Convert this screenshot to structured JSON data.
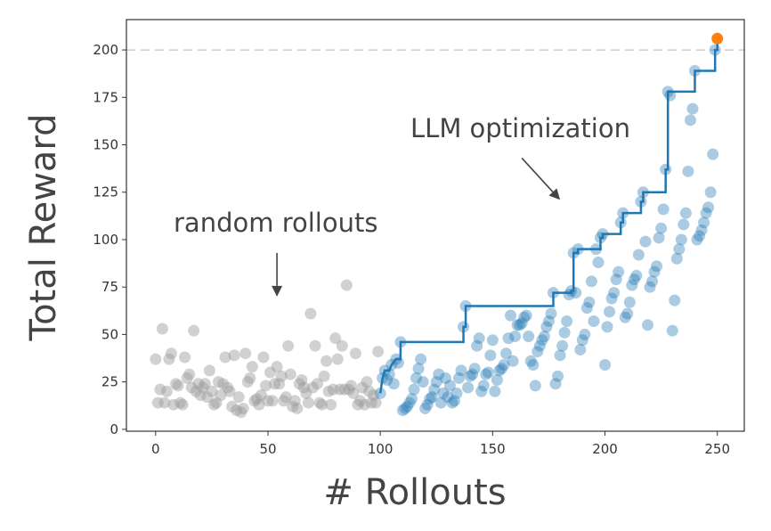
{
  "chart_data": {
    "type": "scatter",
    "xlabel": "# Rollouts",
    "ylabel": "Total Reward",
    "xlim": [
      -13,
      262
    ],
    "ylim": [
      -1,
      216
    ],
    "xticks": [
      0,
      50,
      100,
      150,
      200,
      250
    ],
    "yticks": [
      0,
      25,
      50,
      75,
      100,
      125,
      150,
      175,
      200
    ],
    "grid": false,
    "reference_line": {
      "y": 200,
      "style": "dashed",
      "color": "#cccccc"
    },
    "annotations": [
      {
        "text": "random rollouts",
        "arrow_from": [
          54,
          93
        ],
        "arrow_to": [
          54,
          70
        ]
      },
      {
        "text": "LLM optimization",
        "arrow_from": [
          163,
          143
        ],
        "arrow_to": [
          180,
          121
        ]
      }
    ],
    "colors": {
      "random": "#999999",
      "llm": "#1f77b4",
      "best": "#ff7f0e",
      "best_line": "#1f77b4"
    },
    "series": [
      {
        "name": "random rollouts",
        "points": [
          [
            0,
            37
          ],
          [
            1,
            14
          ],
          [
            2,
            21
          ],
          [
            3,
            53
          ],
          [
            4,
            14
          ],
          [
            5,
            20
          ],
          [
            6,
            37
          ],
          [
            7,
            40
          ],
          [
            8,
            13
          ],
          [
            9,
            24
          ],
          [
            10,
            23
          ],
          [
            11,
            14
          ],
          [
            12,
            13
          ],
          [
            13,
            38
          ],
          [
            14,
            27
          ],
          [
            15,
            29
          ],
          [
            16,
            22
          ],
          [
            17,
            52
          ],
          [
            18,
            20
          ],
          [
            19,
            24
          ],
          [
            20,
            18
          ],
          [
            21,
            22
          ],
          [
            22,
            24
          ],
          [
            23,
            17
          ],
          [
            24,
            31
          ],
          [
            25,
            20
          ],
          [
            26,
            13
          ],
          [
            27,
            14
          ],
          [
            28,
            25
          ],
          [
            29,
            18
          ],
          [
            30,
            24
          ],
          [
            31,
            38
          ],
          [
            32,
            22
          ],
          [
            33,
            20
          ],
          [
            34,
            12
          ],
          [
            35,
            39
          ],
          [
            36,
            10
          ],
          [
            37,
            17
          ],
          [
            38,
            9
          ],
          [
            39,
            11
          ],
          [
            40,
            40
          ],
          [
            41,
            25
          ],
          [
            42,
            27
          ],
          [
            43,
            33
          ],
          [
            44,
            15
          ],
          [
            45,
            16
          ],
          [
            46,
            13
          ],
          [
            47,
            18
          ],
          [
            48,
            38
          ],
          [
            49,
            23
          ],
          [
            50,
            15
          ],
          [
            51,
            30
          ],
          [
            52,
            15
          ],
          [
            53,
            24
          ],
          [
            54,
            33
          ],
          [
            55,
            24
          ],
          [
            56,
            28
          ],
          [
            57,
            15
          ],
          [
            58,
            17
          ],
          [
            59,
            44
          ],
          [
            60,
            29
          ],
          [
            61,
            12
          ],
          [
            62,
            15
          ],
          [
            63,
            11
          ],
          [
            64,
            24
          ],
          [
            65,
            26
          ],
          [
            66,
            22
          ],
          [
            67,
            19
          ],
          [
            68,
            14
          ],
          [
            69,
            61
          ],
          [
            70,
            22
          ],
          [
            71,
            44
          ],
          [
            72,
            24
          ],
          [
            73,
            14
          ],
          [
            74,
            13
          ],
          [
            75,
            28
          ],
          [
            76,
            36
          ],
          [
            77,
            20
          ],
          [
            78,
            13
          ],
          [
            79,
            21
          ],
          [
            80,
            48
          ],
          [
            81,
            37
          ],
          [
            82,
            21
          ],
          [
            83,
            44
          ],
          [
            84,
            21
          ],
          [
            85,
            76
          ],
          [
            86,
            21
          ],
          [
            87,
            23
          ],
          [
            88,
            19
          ],
          [
            89,
            40
          ],
          [
            90,
            13
          ],
          [
            91,
            15
          ],
          [
            92,
            22
          ],
          [
            93,
            13
          ],
          [
            94,
            25
          ],
          [
            95,
            20
          ],
          [
            96,
            14
          ],
          [
            97,
            18
          ],
          [
            98,
            14
          ],
          [
            99,
            41
          ]
        ]
      },
      {
        "name": "LLM optimization",
        "points": [
          [
            100,
            19
          ],
          [
            101,
            27
          ],
          [
            102,
            31
          ],
          [
            103,
            26
          ],
          [
            104,
            29
          ],
          [
            105,
            34
          ],
          [
            106,
            24
          ],
          [
            107,
            37
          ],
          [
            108,
            35
          ],
          [
            109,
            46
          ],
          [
            110,
            10
          ],
          [
            111,
            11
          ],
          [
            112,
            12
          ],
          [
            113,
            14
          ],
          [
            114,
            16
          ],
          [
            115,
            21
          ],
          [
            116,
            27
          ],
          [
            117,
            32
          ],
          [
            118,
            37
          ],
          [
            119,
            25
          ],
          [
            120,
            11
          ],
          [
            121,
            13
          ],
          [
            122,
            16
          ],
          [
            123,
            17
          ],
          [
            124,
            21
          ],
          [
            125,
            25
          ],
          [
            126,
            29
          ],
          [
            127,
            14
          ],
          [
            128,
            19
          ],
          [
            129,
            27
          ],
          [
            130,
            17
          ],
          [
            131,
            23
          ],
          [
            132,
            14
          ],
          [
            133,
            15
          ],
          [
            134,
            19
          ],
          [
            135,
            27
          ],
          [
            136,
            31
          ],
          [
            137,
            54
          ],
          [
            138,
            65
          ],
          [
            139,
            22
          ],
          [
            140,
            28
          ],
          [
            141,
            29
          ],
          [
            142,
            32
          ],
          [
            143,
            44
          ],
          [
            144,
            48
          ],
          [
            145,
            20
          ],
          [
            146,
            23
          ],
          [
            147,
            29
          ],
          [
            148,
            30
          ],
          [
            149,
            39
          ],
          [
            150,
            47
          ],
          [
            151,
            20
          ],
          [
            152,
            26
          ],
          [
            153,
            31
          ],
          [
            154,
            32
          ],
          [
            155,
            34
          ],
          [
            156,
            40
          ],
          [
            157,
            48
          ],
          [
            158,
            60
          ],
          [
            159,
            36
          ],
          [
            160,
            49
          ],
          [
            161,
            55
          ],
          [
            162,
            55
          ],
          [
            163,
            56
          ],
          [
            164,
            59
          ],
          [
            165,
            60
          ],
          [
            166,
            49
          ],
          [
            167,
            36
          ],
          [
            168,
            34
          ],
          [
            169,
            23
          ],
          [
            170,
            41
          ],
          [
            171,
            44
          ],
          [
            172,
            47
          ],
          [
            173,
            49
          ],
          [
            174,
            54
          ],
          [
            175,
            57
          ],
          [
            176,
            61
          ],
          [
            177,
            72
          ],
          [
            178,
            24
          ],
          [
            179,
            28
          ],
          [
            180,
            39
          ],
          [
            181,
            44
          ],
          [
            182,
            51
          ],
          [
            183,
            57
          ],
          [
            184,
            71
          ],
          [
            185,
            73
          ],
          [
            186,
            93
          ],
          [
            187,
            72
          ],
          [
            188,
            95
          ],
          [
            189,
            42
          ],
          [
            190,
            47
          ],
          [
            191,
            50
          ],
          [
            192,
            64
          ],
          [
            193,
            67
          ],
          [
            194,
            78
          ],
          [
            195,
            57
          ],
          [
            196,
            95
          ],
          [
            197,
            88
          ],
          [
            198,
            101
          ],
          [
            199,
            103
          ],
          [
            200,
            34
          ],
          [
            201,
            54
          ],
          [
            202,
            62
          ],
          [
            203,
            69
          ],
          [
            204,
            72
          ],
          [
            205,
            79
          ],
          [
            206,
            83
          ],
          [
            207,
            109
          ],
          [
            208,
            114
          ],
          [
            209,
            59
          ],
          [
            210,
            61
          ],
          [
            211,
            67
          ],
          [
            212,
            76
          ],
          [
            213,
            79
          ],
          [
            214,
            81
          ],
          [
            215,
            92
          ],
          [
            216,
            120
          ],
          [
            217,
            125
          ],
          [
            218,
            99
          ],
          [
            219,
            55
          ],
          [
            220,
            75
          ],
          [
            221,
            78
          ],
          [
            222,
            83
          ],
          [
            223,
            86
          ],
          [
            224,
            101
          ],
          [
            225,
            106
          ],
          [
            226,
            116
          ],
          [
            227,
            137
          ],
          [
            228,
            178
          ],
          [
            229,
            176
          ],
          [
            230,
            52
          ],
          [
            231,
            68
          ],
          [
            232,
            90
          ],
          [
            233,
            95
          ],
          [
            234,
            100
          ],
          [
            235,
            108
          ],
          [
            236,
            114
          ],
          [
            237,
            136
          ],
          [
            238,
            163
          ],
          [
            239,
            169
          ],
          [
            240,
            189
          ],
          [
            241,
            100
          ],
          [
            242,
            102
          ],
          [
            243,
            105
          ],
          [
            244,
            109
          ],
          [
            245,
            114
          ],
          [
            246,
            117
          ],
          [
            247,
            125
          ],
          [
            248,
            145
          ],
          [
            249,
            200
          ]
        ]
      },
      {
        "name": "best",
        "points": [
          [
            250,
            206
          ]
        ]
      }
    ],
    "best_so_far_line": [
      [
        100,
        19
      ],
      [
        101,
        27
      ],
      [
        102,
        31
      ],
      [
        104,
        31
      ],
      [
        105,
        34
      ],
      [
        107,
        37
      ],
      [
        109,
        37
      ],
      [
        109,
        46
      ],
      [
        137,
        46
      ],
      [
        137,
        54
      ],
      [
        138,
        54
      ],
      [
        138,
        65
      ],
      [
        177,
        65
      ],
      [
        177,
        72
      ],
      [
        185,
        72
      ],
      [
        185,
        73
      ],
      [
        186,
        73
      ],
      [
        186,
        93
      ],
      [
        188,
        93
      ],
      [
        188,
        95
      ],
      [
        198,
        95
      ],
      [
        198,
        101
      ],
      [
        199,
        101
      ],
      [
        199,
        103
      ],
      [
        207,
        103
      ],
      [
        207,
        109
      ],
      [
        208,
        109
      ],
      [
        208,
        114
      ],
      [
        216,
        114
      ],
      [
        216,
        120
      ],
      [
        217,
        120
      ],
      [
        217,
        125
      ],
      [
        227,
        125
      ],
      [
        227,
        137
      ],
      [
        228,
        137
      ],
      [
        228,
        178
      ],
      [
        240,
        178
      ],
      [
        240,
        189
      ],
      [
        249,
        189
      ],
      [
        249,
        200
      ],
      [
        250,
        200
      ],
      [
        250,
        206
      ]
    ]
  }
}
